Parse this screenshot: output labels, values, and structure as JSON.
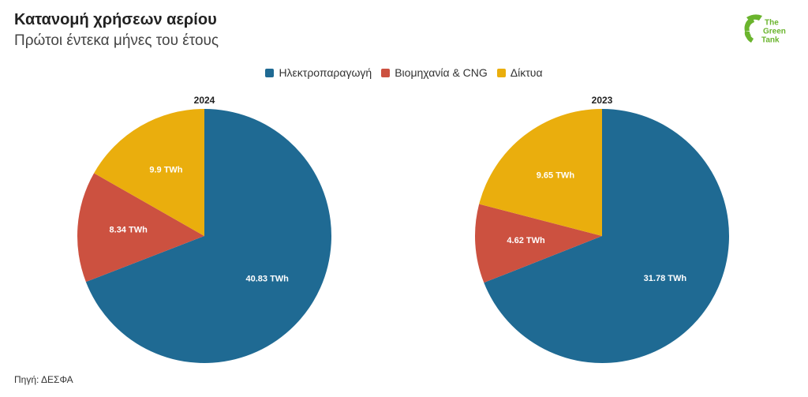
{
  "header": {
    "title": "Κατανομή χρήσεων αερίου",
    "subtitle": "Πρώτοι έντεκα μήνες του έτους"
  },
  "logo": [
    "The",
    "Green",
    "Tank"
  ],
  "source": "Πηγή: ΔΕΣΦΑ",
  "chart_data": [
    {
      "type": "pie",
      "title": "2024",
      "categories": [
        "Ηλεκτροπαραγωγή",
        "Βιομηχανία & CNG",
        "Δίκτυα"
      ],
      "values": [
        40.83,
        8.34,
        9.9
      ],
      "value_labels": [
        "40.83 TWh",
        "8.34 TWh",
        "9.9 TWh"
      ],
      "colors": [
        "#1f6a93",
        "#cc5140",
        "#eaae0d"
      ]
    },
    {
      "type": "pie",
      "title": "2023",
      "categories": [
        "Ηλεκτροπαραγωγή",
        "Βιομηχανία & CNG",
        "Δίκτυα"
      ],
      "values": [
        31.78,
        4.62,
        9.65
      ],
      "value_labels": [
        "31.78 TWh",
        "4.62 TWh",
        "9.65 TWh"
      ],
      "colors": [
        "#1f6a93",
        "#cc5140",
        "#eaae0d"
      ]
    }
  ]
}
